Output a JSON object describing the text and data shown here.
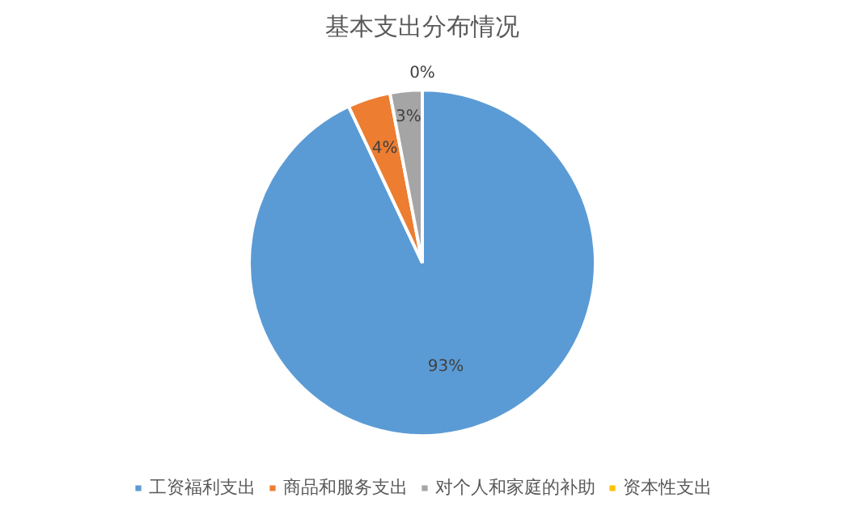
{
  "chart_data": {
    "type": "pie",
    "title": "基本支出分布情况",
    "categories": [
      "工资福利支出",
      "商品和服务支出",
      "对个人和家庭的补助",
      "资本性支出"
    ],
    "values": [
      93,
      4,
      3,
      0
    ],
    "colors": [
      "#5b9bd5",
      "#ed7d31",
      "#a5a5a5",
      "#ffc000"
    ],
    "value_labels": [
      "93%",
      "4%",
      "3%",
      "0%"
    ],
    "legend": "bottom"
  }
}
